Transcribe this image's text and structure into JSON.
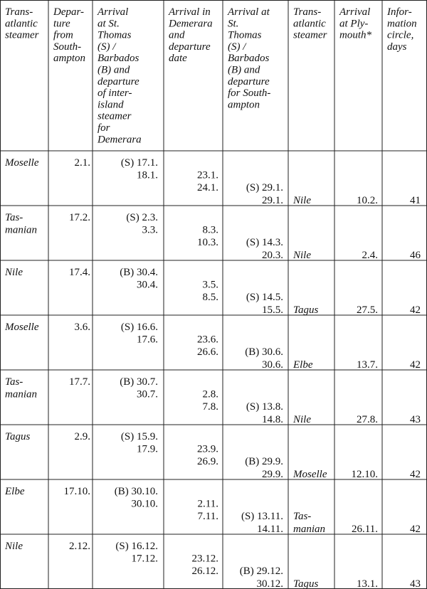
{
  "table": {
    "header": [
      [
        "Trans-",
        "atlantic",
        "steamer"
      ],
      [
        "Depar-",
        "ture",
        "from",
        "South-",
        "ampton"
      ],
      [
        "Arrival",
        "at St.",
        "Thomas",
        "(S) /",
        "Barbados",
        "(B) and",
        "departure",
        "of inter-",
        "island",
        "steamer",
        "for",
        "Demerara"
      ],
      [
        "Arrival in",
        "Demerara",
        "and",
        "departure",
        "date"
      ],
      [
        "Arrival at",
        "St.",
        "Thomas",
        "(S) /",
        "Barbados",
        "(B) and",
        "departure",
        "for South-",
        "ampton"
      ],
      [
        "Trans-",
        "atlantic",
        "steamer"
      ],
      [
        "Arrival",
        "at Ply-",
        "mouth*"
      ],
      [
        "Infor-",
        "mation",
        "circle,",
        "days"
      ]
    ],
    "rows": [
      [
        [
          "Moselle"
        ],
        [
          "2.1."
        ],
        [
          "(S) 17.1.",
          "18.1."
        ],
        [
          "23.1.",
          "24.1."
        ],
        [
          "(S) 29.1.",
          "29.1."
        ],
        [
          "Nile"
        ],
        [
          "10.2."
        ],
        [
          "41"
        ]
      ],
      [
        [
          "Tas-",
          "manian"
        ],
        [
          "17.2."
        ],
        [
          "(S) 2.3.",
          "3.3."
        ],
        [
          "8.3.",
          "10.3."
        ],
        [
          "(S) 14.3.",
          "20.3."
        ],
        [
          "Nile"
        ],
        [
          "2.4."
        ],
        [
          "46"
        ]
      ],
      [
        [
          "Nile"
        ],
        [
          "17.4."
        ],
        [
          "(B) 30.4.",
          "30.4."
        ],
        [
          "3.5.",
          "8.5."
        ],
        [
          "(S) 14.5.",
          "15.5."
        ],
        [
          "Tagus"
        ],
        [
          "27.5."
        ],
        [
          "42"
        ]
      ],
      [
        [
          "Moselle"
        ],
        [
          "3.6."
        ],
        [
          "(S) 16.6.",
          "17.6."
        ],
        [
          "23.6.",
          "26.6."
        ],
        [
          "(B) 30.6.",
          "30.6."
        ],
        [
          "Elbe"
        ],
        [
          "13.7."
        ],
        [
          "42"
        ]
      ],
      [
        [
          "Tas-",
          "manian"
        ],
        [
          "17.7."
        ],
        [
          "(B) 30.7.",
          "30.7."
        ],
        [
          "2.8.",
          "7.8."
        ],
        [
          "(S) 13.8.",
          "14.8."
        ],
        [
          "Nile"
        ],
        [
          "27.8."
        ],
        [
          "43"
        ]
      ],
      [
        [
          "Tagus"
        ],
        [
          "2.9."
        ],
        [
          "(S) 15.9.",
          "17.9."
        ],
        [
          "23.9.",
          "26.9."
        ],
        [
          "(B) 29.9.",
          "29.9."
        ],
        [
          "Moselle"
        ],
        [
          "12.10."
        ],
        [
          "42"
        ]
      ],
      [
        [
          "Elbe"
        ],
        [
          "17.10."
        ],
        [
          "(B) 30.10.",
          "30.10."
        ],
        [
          "2.11.",
          "7.11."
        ],
        [
          "(S) 13.11.",
          "14.11."
        ],
        [
          "Tas-",
          "manian"
        ],
        [
          "26.11."
        ],
        [
          "42"
        ]
      ],
      [
        [
          "Nile"
        ],
        [
          "2.12."
        ],
        [
          "(S) 16.12.",
          "17.12."
        ],
        [
          "23.12.",
          "26.12."
        ],
        [
          "(B) 29.12.",
          "30.12."
        ],
        [
          "Tagus"
        ],
        [
          "13.1."
        ],
        [
          "43"
        ]
      ]
    ]
  }
}
